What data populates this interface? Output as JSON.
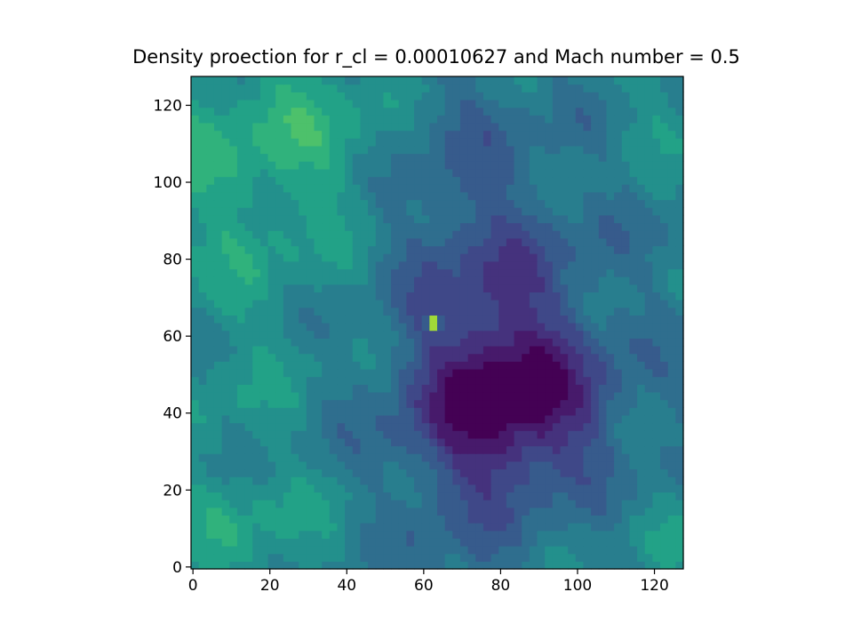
{
  "chart_data": {
    "type": "heatmap",
    "title": "Density proection for r_cl = 0.00010627 and Mach number = 0.5",
    "xlabel": "",
    "ylabel": "",
    "xlim": [
      0,
      127
    ],
    "ylim": [
      0,
      127
    ],
    "x_ticks": [
      "0",
      "20",
      "40",
      "60",
      "80",
      "100",
      "120"
    ],
    "y_ticks": [
      "0",
      "20",
      "40",
      "60",
      "80",
      "100",
      "120"
    ],
    "colormap": "viridis",
    "grid_size": [
      128,
      128
    ],
    "grid": false,
    "features": [
      {
        "kind": "bright-peak",
        "x": 63,
        "y": 64,
        "level": "max"
      },
      {
        "kind": "low-density-region",
        "x": 85,
        "y": 42,
        "level": "min"
      },
      {
        "kind": "high-density-region",
        "x": 15,
        "y": 5,
        "level": "high"
      },
      {
        "kind": "high-density-region",
        "x": 15,
        "y": 115,
        "level": "high"
      },
      {
        "kind": "high-density-region",
        "x": 122,
        "y": 120,
        "level": "high"
      },
      {
        "kind": "high-density-region",
        "x": 122,
        "y": 5,
        "level": "high"
      }
    ]
  }
}
